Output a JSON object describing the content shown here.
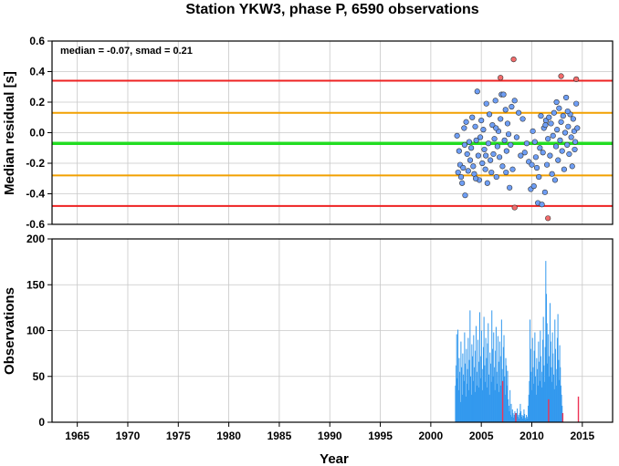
{
  "chart_data": [
    {
      "type": "scatter",
      "title": "Station YKW3, phase P, 6590 observations",
      "ylabel": "Median residual [s]",
      "annotation": "median = -0.07, smad = 0.21",
      "xlim": [
        1962.5,
        2018
      ],
      "ylim": [
        -0.6,
        0.6
      ],
      "yticks": [
        "0.6",
        "0.4",
        "0.2",
        "0.0",
        "-0.2",
        "-0.4",
        "-0.6"
      ],
      "grid": true,
      "reference_lines": [
        {
          "value": 0.34,
          "color": "#ee2222"
        },
        {
          "value": 0.13,
          "color": "#f2a000"
        },
        {
          "value": -0.07,
          "color": "#22dd22"
        },
        {
          "value": -0.28,
          "color": "#f2a000"
        },
        {
          "value": -0.48,
          "color": "#ee2222"
        }
      ],
      "series": [
        {
          "color": "#6e9ef5",
          "points": [
            [
              2002.6,
              -0.02
            ],
            [
              2002.8,
              -0.12
            ],
            [
              2002.9,
              -0.21
            ],
            [
              2003.0,
              -0.29
            ],
            [
              2003.1,
              -0.33
            ],
            [
              2003.2,
              -0.23
            ],
            [
              2003.3,
              0.03
            ],
            [
              2003.4,
              -0.41
            ],
            [
              2003.5,
              0.07
            ],
            [
              2003.6,
              -0.14
            ],
            [
              2003.7,
              -0.25
            ],
            [
              2003.8,
              -0.06
            ],
            [
              2003.9,
              -0.18
            ],
            [
              2004.0,
              -0.1
            ],
            [
              2004.1,
              0.1
            ],
            [
              2004.2,
              -0.22
            ],
            [
              2004.3,
              -0.27
            ],
            [
              2004.4,
              0.04
            ],
            [
              2004.5,
              -0.05
            ],
            [
              2004.6,
              0.27
            ],
            [
              2004.7,
              -0.15
            ],
            [
              2004.8,
              -0.31
            ],
            [
              2004.9,
              -0.03
            ],
            [
              2005.0,
              0.08
            ],
            [
              2005.1,
              -0.2
            ],
            [
              2005.2,
              0.02
            ],
            [
              2005.3,
              -0.11
            ],
            [
              2005.4,
              -0.24
            ],
            [
              2005.5,
              0.19
            ],
            [
              2005.6,
              -0.33
            ],
            [
              2005.7,
              -0.07
            ],
            [
              2005.8,
              0.12
            ],
            [
              2005.9,
              -0.18
            ],
            [
              2006.0,
              -0.26
            ],
            [
              2006.1,
              0.05
            ],
            [
              2006.2,
              -0.14
            ],
            [
              2006.3,
              -0.04
            ],
            [
              2006.4,
              0.21
            ],
            [
              2006.5,
              -0.29
            ],
            [
              2006.6,
              -0.09
            ],
            [
              2006.7,
              0.01
            ],
            [
              2006.8,
              -0.16
            ],
            [
              2006.9,
              0.09
            ],
            [
              2007.0,
              0.25
            ],
            [
              2007.1,
              -0.22
            ],
            [
              2007.2,
              0.25
            ],
            [
              2007.3,
              -0.05
            ],
            [
              2007.4,
              0.15
            ],
            [
              2007.5,
              -0.12
            ],
            [
              2007.6,
              0.06
            ],
            [
              2007.7,
              -0.01
            ],
            [
              2007.8,
              -0.36
            ],
            [
              2007.9,
              -0.08
            ],
            [
              2008.0,
              0.17
            ],
            [
              2008.1,
              -0.24
            ],
            [
              2008.3,
              0.21
            ],
            [
              2008.5,
              -0.03
            ],
            [
              2008.7,
              0.13
            ],
            [
              2008.9,
              -0.15
            ],
            [
              2009.1,
              0.09
            ],
            [
              2009.3,
              -0.13
            ],
            [
              2009.5,
              -0.07
            ],
            [
              2009.7,
              -0.19
            ],
            [
              2009.9,
              -0.37
            ],
            [
              2010.0,
              -0.21
            ],
            [
              2010.1,
              0.01
            ],
            [
              2010.2,
              -0.35
            ],
            [
              2010.3,
              -0.06
            ],
            [
              2010.4,
              -0.16
            ],
            [
              2010.5,
              -0.23
            ],
            [
              2010.6,
              -0.46
            ],
            [
              2010.7,
              -0.29
            ],
            [
              2010.8,
              -0.1
            ],
            [
              2010.9,
              0.11
            ],
            [
              2011.0,
              -0.47
            ],
            [
              2011.1,
              -0.13
            ],
            [
              2011.2,
              0.03
            ],
            [
              2011.3,
              -0.39
            ],
            [
              2011.4,
              0.08
            ],
            [
              2011.5,
              -0.21
            ],
            [
              2011.6,
              -0.04
            ],
            [
              2011.7,
              0.1
            ],
            [
              2011.8,
              -0.15
            ],
            [
              2011.9,
              0.06
            ],
            [
              2012.0,
              -0.27
            ],
            [
              2012.1,
              -0.02
            ],
            [
              2012.2,
              0.13
            ],
            [
              2012.3,
              -0.31
            ],
            [
              2012.4,
              -0.09
            ],
            [
              2012.5,
              0.02
            ],
            [
              2012.6,
              -0.18
            ],
            [
              2012.7,
              0.16
            ],
            [
              2012.8,
              -0.05
            ],
            [
              2012.9,
              0.07
            ],
            [
              2013.0,
              -0.12
            ],
            [
              2013.1,
              0.11
            ],
            [
              2013.2,
              -0.24
            ],
            [
              2013.3,
              0.0
            ],
            [
              2013.4,
              0.23
            ],
            [
              2013.5,
              -0.08
            ],
            [
              2013.6,
              0.04
            ],
            [
              2013.7,
              -0.14
            ],
            [
              2013.8,
              0.12
            ],
            [
              2013.9,
              -0.03
            ],
            [
              2014.0,
              -0.22
            ],
            [
              2014.1,
              0.09
            ],
            [
              2014.2,
              0.01
            ],
            [
              2014.3,
              -0.06
            ],
            [
              2014.4,
              0.19
            ],
            [
              2014.5,
              0.03
            ],
            [
              2002.7,
              -0.26
            ],
            [
              2003.35,
              -0.08
            ],
            [
              2004.45,
              -0.3
            ],
            [
              2005.45,
              -0.15
            ],
            [
              2006.45,
              0.03
            ],
            [
              2007.45,
              -0.26
            ],
            [
              2011.35,
              0.05
            ],
            [
              2012.45,
              0.2
            ],
            [
              2013.55,
              0.14
            ],
            [
              2014.25,
              -0.11
            ]
          ]
        },
        {
          "color": "#f26b6b",
          "points": [
            [
              2008.2,
              0.48
            ],
            [
              2006.9,
              0.36
            ],
            [
              2012.9,
              0.37
            ],
            [
              2014.4,
              0.35
            ],
            [
              2008.3,
              -0.49
            ],
            [
              2011.6,
              -0.56
            ]
          ]
        }
      ]
    },
    {
      "type": "bar",
      "ylabel": "Observations",
      "xlabel": "Year",
      "xlim": [
        1962.5,
        2018
      ],
      "ylim": [
        0,
        200
      ],
      "yticks": [
        "200",
        "150",
        "100",
        "50",
        "0"
      ],
      "xticks": [
        "1965",
        "1970",
        "1975",
        "1980",
        "1985",
        "1990",
        "1995",
        "2000",
        "2005",
        "2010",
        "2015"
      ],
      "grid": true,
      "bar_color": "#3399ee",
      "red_bar_color": "#ee3355",
      "x_start": 2002.4,
      "x_step": 0.06,
      "values": [
        40,
        62,
        96,
        48,
        101,
        35,
        70,
        55,
        22,
        88,
        60,
        30,
        75,
        52,
        45,
        98,
        64,
        28,
        80,
        42,
        58,
        92,
        35,
        68,
        122,
        50,
        30,
        85,
        72,
        45,
        95,
        60,
        33,
        78,
        105,
        55,
        40,
        90,
        66,
        38,
        120,
        72,
        48,
        100,
        58,
        35,
        82,
        115,
        62,
        44,
        92,
        70,
        38,
        86,
        108,
        52,
        30,
        76,
        64,
        44,
        122,
        80,
        50,
        98,
        60,
        35,
        78,
        104,
        55,
        42,
        94,
        66,
        33,
        88,
        72,
        40,
        112,
        58,
        36,
        82,
        95,
        50,
        30,
        70,
        62,
        40,
        56,
        25,
        18,
        12,
        35,
        8,
        20,
        6,
        14,
        10,
        5,
        8,
        12,
        6,
        4,
        10,
        15,
        6,
        8,
        4,
        10,
        20,
        12,
        6,
        8,
        4,
        7,
        14,
        9,
        5,
        3,
        8,
        6,
        4,
        18,
        30,
        45,
        112,
        80,
        55,
        35,
        92,
        60,
        42,
        78,
        98,
        50,
        30,
        70,
        58,
        40,
        88,
        66,
        45,
        100,
        72,
        55,
        38,
        90,
        115,
        62,
        44,
        82,
        176,
        140,
        108,
        64,
        96,
        72,
        50,
        130,
        88,
        60,
        44,
        98,
        75,
        52,
        36,
        112,
        80,
        58,
        40,
        92,
        118,
        68,
        46,
        84,
        60,
        40,
        30,
        18,
        6
      ],
      "red_bars": [
        [
          2007.05,
          45
        ],
        [
          2008.35,
          10
        ],
        [
          2011.6,
          25
        ],
        [
          2013.0,
          10
        ],
        [
          2014.55,
          28
        ]
      ]
    }
  ]
}
